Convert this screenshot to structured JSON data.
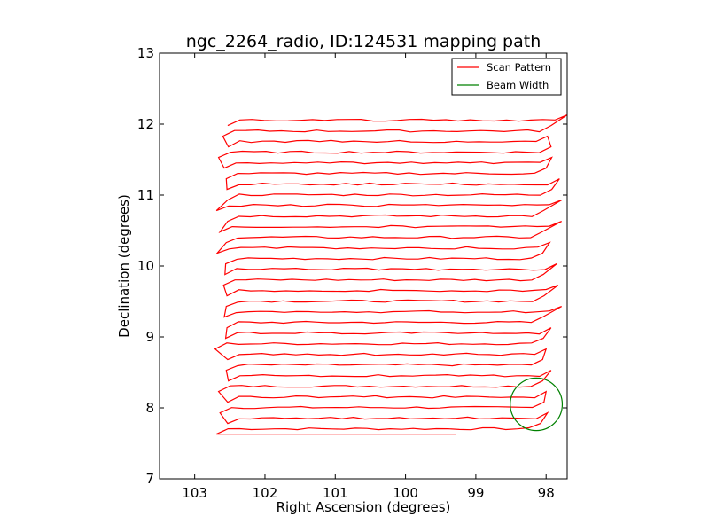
{
  "chart_data": {
    "type": "line",
    "title": "ngc_2264_radio, ID:124531 mapping path",
    "xlabel": "Right Ascension (degrees)",
    "ylabel": "Declination (degrees)",
    "xlim": [
      103.5,
      97.7
    ],
    "ylim": [
      7,
      13
    ],
    "x_inverted": true,
    "grid": false,
    "legend_position": "top-right",
    "x_ticks": [
      "103",
      "102",
      "101",
      "100",
      "99",
      "98"
    ],
    "y_ticks": [
      "7",
      "8",
      "9",
      "10",
      "11",
      "12",
      "13"
    ],
    "series": [
      {
        "name": "Scan Pattern",
        "color": "#ff0000",
        "scan_rows": [
          {
            "dec_left": 7.63,
            "dec_right": 7.78,
            "ra_left": 102.69,
            "ra_right": 98.08
          },
          {
            "dec_left": 7.78,
            "dec_right": 7.93,
            "ra_left": 102.53,
            "ra_right": 97.98
          },
          {
            "dec_left": 7.93,
            "dec_right": 8.08,
            "ra_left": 102.64,
            "ra_right": 98.03
          },
          {
            "dec_left": 8.08,
            "dec_right": 8.23,
            "ra_left": 102.53,
            "ra_right": 98.0
          },
          {
            "dec_left": 8.23,
            "dec_right": 8.38,
            "ra_left": 102.66,
            "ra_right": 98.05
          },
          {
            "dec_left": 8.38,
            "dec_right": 8.53,
            "ra_left": 102.52,
            "ra_right": 97.93
          },
          {
            "dec_left": 8.53,
            "dec_right": 8.68,
            "ra_left": 102.55,
            "ra_right": 98.05
          },
          {
            "dec_left": 8.68,
            "dec_right": 8.83,
            "ra_left": 102.53,
            "ra_right": 98.0
          },
          {
            "dec_left": 8.83,
            "dec_right": 8.98,
            "ra_left": 102.71,
            "ra_right": 98.04
          },
          {
            "dec_left": 8.98,
            "dec_right": 9.13,
            "ra_left": 102.56,
            "ra_right": 97.93
          },
          {
            "dec_left": 9.13,
            "dec_right": 9.28,
            "ra_left": 102.54,
            "ra_right": 98.05
          },
          {
            "dec_left": 9.28,
            "dec_right": 9.43,
            "ra_left": 102.58,
            "ra_right": 97.78
          },
          {
            "dec_left": 9.43,
            "dec_right": 9.58,
            "ra_left": 102.55,
            "ra_right": 98.03
          },
          {
            "dec_left": 9.58,
            "dec_right": 9.73,
            "ra_left": 102.54,
            "ra_right": 97.83
          },
          {
            "dec_left": 9.73,
            "dec_right": 9.88,
            "ra_left": 102.59,
            "ra_right": 98.04
          },
          {
            "dec_left": 9.88,
            "dec_right": 10.03,
            "ra_left": 102.57,
            "ra_right": 97.85
          },
          {
            "dec_left": 10.03,
            "dec_right": 10.18,
            "ra_left": 102.56,
            "ra_right": 98.05
          },
          {
            "dec_left": 10.18,
            "dec_right": 10.33,
            "ra_left": 102.68,
            "ra_right": 97.95
          },
          {
            "dec_left": 10.33,
            "dec_right": 10.48,
            "ra_left": 102.55,
            "ra_right": 98.06
          },
          {
            "dec_left": 10.48,
            "dec_right": 10.63,
            "ra_left": 102.64,
            "ra_right": 97.78
          },
          {
            "dec_left": 10.63,
            "dec_right": 10.78,
            "ra_left": 102.53,
            "ra_right": 98.04
          },
          {
            "dec_left": 10.78,
            "dec_right": 10.93,
            "ra_left": 102.69,
            "ra_right": 97.78
          },
          {
            "dec_left": 10.93,
            "dec_right": 11.08,
            "ra_left": 102.53,
            "ra_right": 97.92
          },
          {
            "dec_left": 11.08,
            "dec_right": 11.23,
            "ra_left": 102.54,
            "ra_right": 97.81
          },
          {
            "dec_left": 11.23,
            "dec_right": 11.38,
            "ra_left": 102.55,
            "ra_right": 98.0
          },
          {
            "dec_left": 11.38,
            "dec_right": 11.53,
            "ra_left": 102.58,
            "ra_right": 97.92
          },
          {
            "dec_left": 11.53,
            "dec_right": 11.68,
            "ra_left": 102.66,
            "ra_right": 97.93
          },
          {
            "dec_left": 11.68,
            "dec_right": 11.83,
            "ra_left": 102.52,
            "ra_right": 97.98
          },
          {
            "dec_left": 11.83,
            "dec_right": 11.98,
            "ra_left": 102.6,
            "ra_right": 97.93
          },
          {
            "dec_left": 11.98,
            "dec_right": 12.13,
            "ra_left": 102.53,
            "ra_right": 97.7
          }
        ],
        "end_point": {
          "ra": 99.28,
          "dec": 7.63
        }
      },
      {
        "name": "Beam Width",
        "color": "#008000",
        "circle": {
          "center_ra": 98.14,
          "center_dec": 8.05,
          "radius_deg": 0.37
        }
      }
    ]
  }
}
